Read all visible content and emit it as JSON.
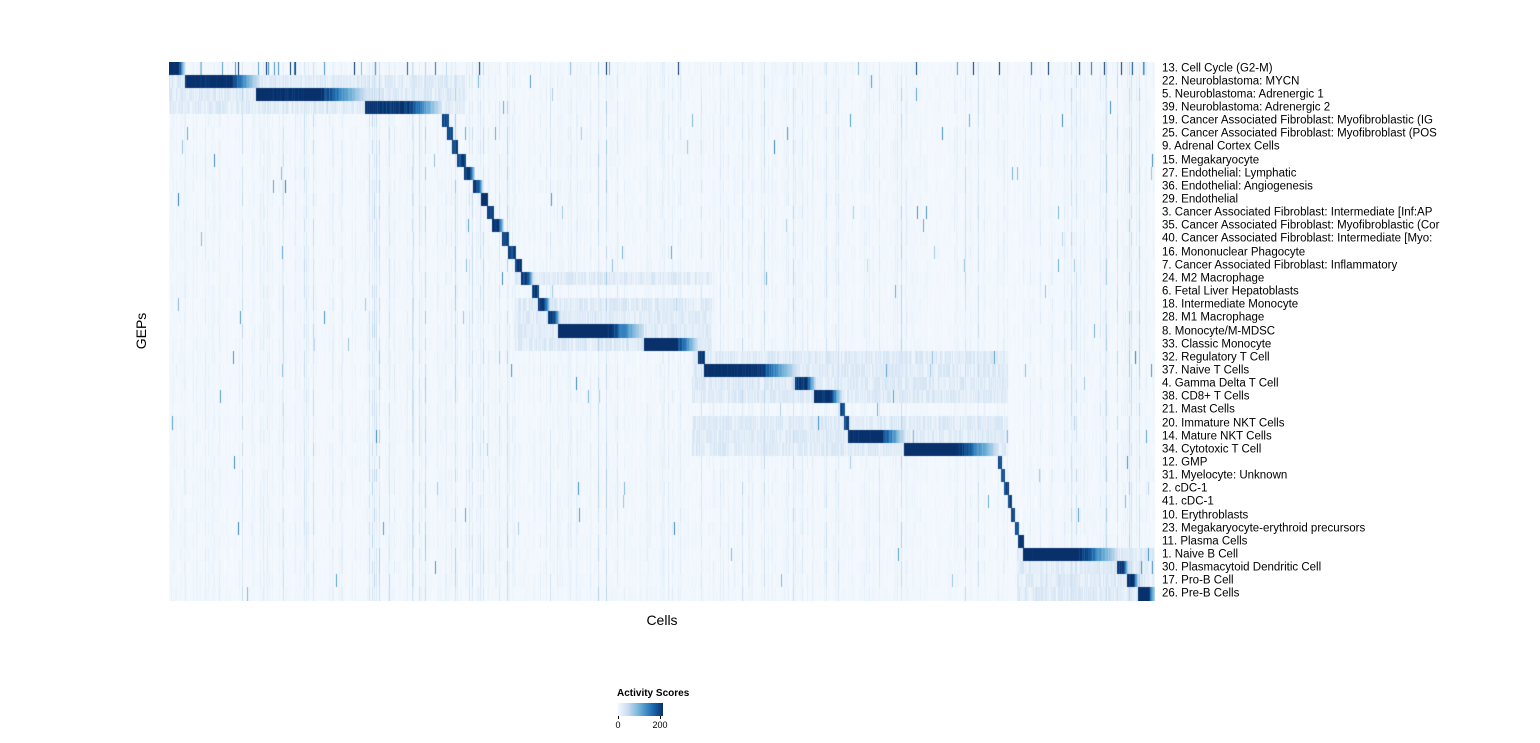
{
  "legend": {
    "title": "Activity Scores",
    "tick_min": "0",
    "tick_max": "200"
  },
  "chart_data": {
    "type": "heatmap",
    "title": "",
    "xlabel": "Cells",
    "ylabel": "GEPs",
    "x_tick_labels": "none (columns are individual cells)",
    "colormap": {
      "name": "Blues",
      "min": 0,
      "max": 200,
      "stops": [
        "#f7fbff",
        "#c6dbef",
        "#6baed6",
        "#2171b5",
        "#08306b"
      ]
    },
    "legend": {
      "title": "Activity Scores",
      "ticks": [
        0,
        200
      ],
      "position": "bottom"
    },
    "description": "Cells (columns) ordered by assigned GEP; each row shows a diagonal block of high activity scores for that GEP, given as fractional x-ranges of the cell axis.",
    "rows": [
      {
        "label": "13. Cell Cycle (G2-M)",
        "block": [
          0.0,
          0.016
        ],
        "peak": 220,
        "scattered": true
      },
      {
        "label": "22. Neuroblastoma: MYCN",
        "block": [
          0.016,
          0.092
        ],
        "peak": 220,
        "halo": [
          0.0,
          0.3
        ]
      },
      {
        "label": "5. Neuroblastoma: Adrenergic 1",
        "block": [
          0.088,
          0.2
        ],
        "peak": 220,
        "halo": [
          0.0,
          0.3
        ]
      },
      {
        "label": "39. Neuroblastoma: Adrenergic 2",
        "block": [
          0.198,
          0.276
        ],
        "peak": 205,
        "halo": [
          0.0,
          0.3
        ]
      },
      {
        "label": "19. Cancer Associated Fibroblast: Myofibroblastic (IG",
        "block": [
          0.276,
          0.283
        ],
        "peak": 185
      },
      {
        "label": "25. Cancer Associated Fibroblast: Myofibroblast (POS",
        "block": [
          0.281,
          0.288
        ],
        "peak": 190
      },
      {
        "label": "9. Adrenal Cortex Cells",
        "block": [
          0.287,
          0.293
        ],
        "peak": 185
      },
      {
        "label": "15. Megakaryocyte",
        "block": [
          0.292,
          0.301
        ],
        "peak": 190
      },
      {
        "label": "27. Endothelial: Lymphatic",
        "block": [
          0.299,
          0.31
        ],
        "peak": 200
      },
      {
        "label": "36. Endothelial: Angiogenesis",
        "block": [
          0.308,
          0.318
        ],
        "peak": 195
      },
      {
        "label": "29. Endothelial",
        "block": [
          0.316,
          0.323
        ],
        "peak": 200
      },
      {
        "label": "3. Cancer Associated Fibroblast: Intermediate [Inf:AP",
        "block": [
          0.322,
          0.329
        ],
        "peak": 190
      },
      {
        "label": "35. Cancer Associated Fibroblast: Myofibroblastic (Cor",
        "block": [
          0.327,
          0.339
        ],
        "peak": 210
      },
      {
        "label": "40. Cancer Associated Fibroblast: Intermediate [Myo:",
        "block": [
          0.337,
          0.344
        ],
        "peak": 190
      },
      {
        "label": "16. Mononuclear Phagocyte",
        "block": [
          0.343,
          0.351
        ],
        "peak": 190
      },
      {
        "label": "7. Cancer Associated Fibroblast: Inflammatory",
        "block": [
          0.35,
          0.357
        ],
        "peak": 190
      },
      {
        "label": "24. M2 Macrophage",
        "block": [
          0.356,
          0.369
        ],
        "peak": 200,
        "halo": [
          0.35,
          0.55
        ]
      },
      {
        "label": "6. Fetal Liver Hepatoblasts",
        "block": [
          0.368,
          0.375
        ],
        "peak": 190
      },
      {
        "label": "18. Intermediate Monocyte",
        "block": [
          0.374,
          0.386
        ],
        "peak": 195,
        "halo": [
          0.35,
          0.55
        ]
      },
      {
        "label": "28. M1 Macrophage",
        "block": [
          0.384,
          0.396
        ],
        "peak": 200,
        "halo": [
          0.35,
          0.55
        ]
      },
      {
        "label": "8. Monocyte/M-MDSC",
        "block": [
          0.394,
          0.481
        ],
        "peak": 230,
        "halo": [
          0.35,
          0.55
        ]
      },
      {
        "label": "33. Classic Monocyte",
        "block": [
          0.481,
          0.536
        ],
        "peak": 230,
        "halo": [
          0.35,
          0.55
        ]
      },
      {
        "label": "32. Regulatory T Cell",
        "block": [
          0.536,
          0.543
        ],
        "peak": 190,
        "halo": [
          0.53,
          0.85
        ]
      },
      {
        "label": "37. Naive T Cells",
        "block": [
          0.542,
          0.636
        ],
        "peak": 220,
        "halo": [
          0.53,
          0.85
        ]
      },
      {
        "label": "4. Gamma Delta T Cell",
        "block": [
          0.634,
          0.656
        ],
        "peak": 200,
        "halo": [
          0.53,
          0.85
        ]
      },
      {
        "label": "38. CD8+ T Cells",
        "block": [
          0.654,
          0.682
        ],
        "peak": 215,
        "halo": [
          0.53,
          0.85
        ]
      },
      {
        "label": "21. Mast Cells",
        "block": [
          0.68,
          0.685
        ],
        "peak": 185
      },
      {
        "label": "20. Immature NKT Cells",
        "block": [
          0.684,
          0.689
        ],
        "peak": 190,
        "halo": [
          0.53,
          0.85
        ]
      },
      {
        "label": "14. Mature NKT Cells",
        "block": [
          0.688,
          0.746
        ],
        "peak": 220,
        "halo": [
          0.53,
          0.85
        ]
      },
      {
        "label": "34. Cytotoxic T Cell",
        "block": [
          0.745,
          0.84
        ],
        "peak": 230,
        "halo": [
          0.53,
          0.85
        ]
      },
      {
        "label": "12. GMP",
        "block": [
          0.84,
          0.844
        ],
        "peak": 185
      },
      {
        "label": "31. Myelocyte: Unknown",
        "block": [
          0.843,
          0.847
        ],
        "peak": 185
      },
      {
        "label": "2. cDC-1",
        "block": [
          0.846,
          0.851
        ],
        "peak": 190
      },
      {
        "label": "41. cDC-1",
        "block": [
          0.85,
          0.854
        ],
        "peak": 185
      },
      {
        "label": "10. Erythroblasts",
        "block": [
          0.853,
          0.858
        ],
        "peak": 190
      },
      {
        "label": "23. Megakaryocyte-erythroid precursors",
        "block": [
          0.857,
          0.862
        ],
        "peak": 190
      },
      {
        "label": "11. Plasma Cells",
        "block": [
          0.861,
          0.867
        ],
        "peak": 200
      },
      {
        "label": "1. Naive B Cell",
        "block": [
          0.866,
          0.962
        ],
        "peak": 230,
        "halo": [
          0.86,
          1.0
        ]
      },
      {
        "label": "30. Plasmacytoid Dendritic Cell",
        "block": [
          0.961,
          0.973
        ],
        "peak": 200,
        "halo": [
          0.86,
          1.0
        ]
      },
      {
        "label": "17. Pro-B Cell",
        "block": [
          0.971,
          0.983
        ],
        "peak": 210,
        "halo": [
          0.86,
          1.0
        ]
      },
      {
        "label": "26. Pre-B Cells",
        "block": [
          0.982,
          1.0
        ],
        "peak": 230,
        "halo": [
          0.86,
          1.0
        ]
      }
    ]
  }
}
